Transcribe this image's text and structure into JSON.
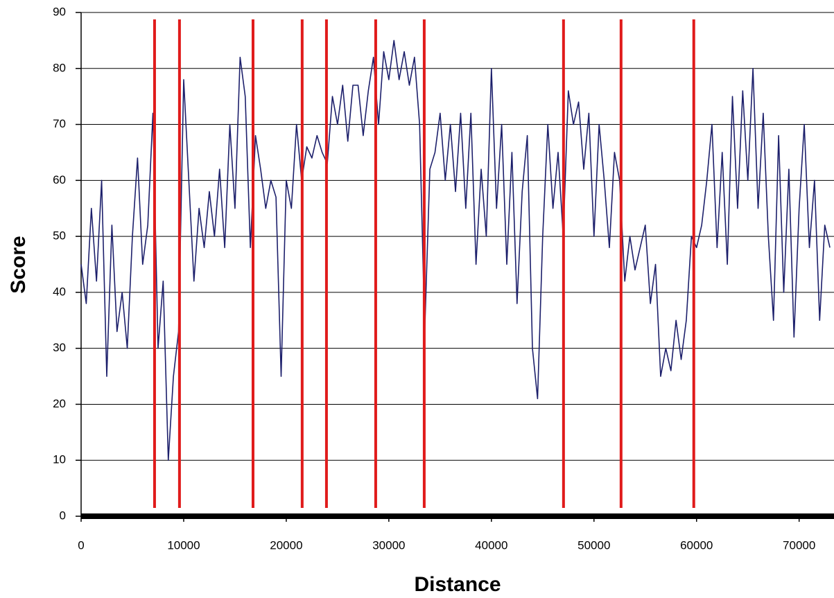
{
  "chart_data": {
    "type": "line",
    "xlabel": "Distance",
    "ylabel": "Score",
    "xlim": [
      0,
      73400
    ],
    "ylim": [
      0,
      90
    ],
    "xticks": [
      0,
      10000,
      20000,
      30000,
      40000,
      50000,
      60000,
      70000
    ],
    "yticks": [
      0,
      10,
      20,
      30,
      40,
      50,
      60,
      70,
      80,
      90
    ],
    "grid": true,
    "markers": {
      "color": "#e01b1b",
      "x": [
        7160,
        9590,
        16760,
        21550,
        23920,
        28720,
        33450,
        47030,
        52640,
        59730
      ]
    },
    "x": [
      0,
      500,
      1000,
      1500,
      2000,
      2500,
      3000,
      3500,
      4000,
      4500,
      5000,
      5500,
      6000,
      6500,
      7000,
      7500,
      8000,
      8500,
      9000,
      9500,
      10000,
      10500,
      11000,
      11500,
      12000,
      12500,
      13000,
      13500,
      14000,
      14500,
      15000,
      15500,
      16000,
      16500,
      17000,
      17500,
      18000,
      18500,
      19000,
      19500,
      20000,
      20500,
      21000,
      21500,
      22000,
      22500,
      23000,
      23500,
      24000,
      24500,
      25000,
      25500,
      26000,
      26500,
      27000,
      27500,
      28000,
      28500,
      29000,
      29500,
      30000,
      30500,
      31000,
      31500,
      32000,
      32500,
      33000,
      33500,
      34000,
      34500,
      35000,
      35500,
      36000,
      36500,
      37000,
      37500,
      38000,
      38500,
      39000,
      39500,
      40000,
      40500,
      41000,
      41500,
      42000,
      42500,
      43000,
      43500,
      44000,
      44500,
      45000,
      45500,
      46000,
      46500,
      47000,
      47500,
      48000,
      48500,
      49000,
      49500,
      50000,
      50500,
      51000,
      51500,
      52000,
      52500,
      53000,
      53500,
      54000,
      54500,
      55000,
      55500,
      56000,
      56500,
      57000,
      57500,
      58000,
      58500,
      59000,
      59500,
      60000,
      60500,
      61000,
      61500,
      62000,
      62500,
      63000,
      63500,
      64000,
      64500,
      65000,
      65500,
      66000,
      66500,
      67000,
      67500,
      68000,
      68500,
      69000,
      69500,
      70000,
      70500,
      71000,
      71500,
      72000,
      72500,
      73000
    ],
    "series": [
      {
        "color": "#1c1f6b",
        "values": [
          45,
          38,
          55,
          42,
          60,
          25,
          52,
          33,
          40,
          30,
          50,
          64,
          45,
          52,
          72,
          30,
          42,
          10,
          25,
          33,
          78,
          60,
          42,
          55,
          48,
          58,
          50,
          62,
          48,
          70,
          55,
          82,
          75,
          48,
          68,
          62,
          55,
          60,
          57,
          25,
          60,
          55,
          70,
          60,
          66,
          64,
          68,
          65,
          63,
          75,
          70,
          77,
          67,
          77,
          77,
          68,
          76,
          82,
          70,
          83,
          78,
          85,
          78,
          83,
          77,
          82,
          70,
          33,
          62,
          65,
          72,
          60,
          70,
          58,
          72,
          55,
          72,
          45,
          62,
          50,
          80,
          55,
          70,
          45,
          65,
          38,
          58,
          68,
          30,
          21,
          50,
          70,
          55,
          65,
          50,
          76,
          70,
          74,
          62,
          72,
          50,
          70,
          60,
          48,
          65,
          60,
          42,
          50,
          44,
          48,
          52,
          38,
          45,
          25,
          30,
          26,
          35,
          28,
          35,
          50,
          48,
          52,
          60,
          70,
          48,
          65,
          45,
          75,
          55,
          76,
          60,
          80,
          55,
          72,
          50,
          35,
          68,
          40,
          62,
          32,
          55,
          70,
          48,
          60,
          35,
          52,
          48
        ]
      }
    ]
  }
}
